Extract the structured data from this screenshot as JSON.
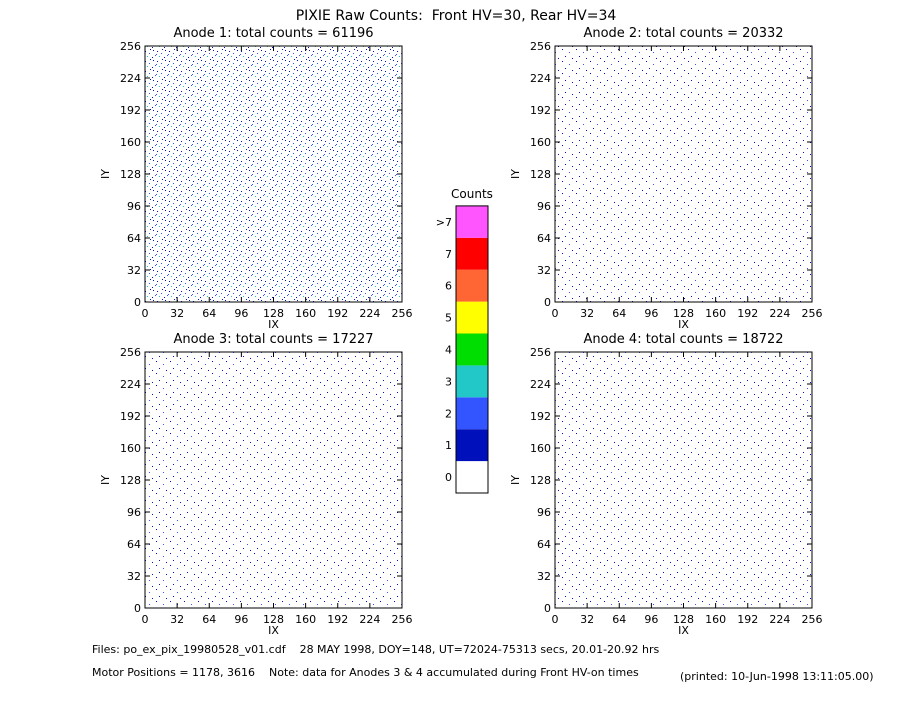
{
  "title": "PIXIE Raw Counts:  Front HV=30, Rear HV=34",
  "chart_data": [
    {
      "type": "heatmap",
      "title": "Anode 1: total counts = 61196",
      "xlabel": "IX",
      "ylabel": "IY",
      "xlim": [
        0,
        256
      ],
      "ylim": [
        0,
        256
      ],
      "xticks": [
        0,
        32,
        64,
        96,
        128,
        160,
        192,
        224,
        256
      ],
      "yticks": [
        0,
        32,
        64,
        96,
        128,
        160,
        192,
        224,
        256
      ]
    },
    {
      "type": "heatmap",
      "title": "Anode 2: total counts = 20332",
      "xlabel": "IX",
      "ylabel": "IY",
      "xlim": [
        0,
        256
      ],
      "ylim": [
        0,
        256
      ],
      "xticks": [
        0,
        32,
        64,
        96,
        128,
        160,
        192,
        224,
        256
      ],
      "yticks": [
        0,
        32,
        64,
        96,
        128,
        160,
        192,
        224,
        256
      ]
    },
    {
      "type": "heatmap",
      "title": "Anode 3: total counts = 17227",
      "xlabel": "IX",
      "ylabel": "IY",
      "xlim": [
        0,
        256
      ],
      "ylim": [
        0,
        256
      ],
      "xticks": [
        0,
        32,
        64,
        96,
        128,
        160,
        192,
        224,
        256
      ],
      "yticks": [
        0,
        32,
        64,
        96,
        128,
        160,
        192,
        224,
        256
      ]
    },
    {
      "type": "heatmap",
      "title": "Anode 4: total counts = 18722",
      "xlabel": "IX",
      "ylabel": "IY",
      "xlim": [
        0,
        256
      ],
      "ylim": [
        0,
        256
      ],
      "xticks": [
        0,
        32,
        64,
        96,
        128,
        160,
        192,
        224,
        256
      ],
      "yticks": [
        0,
        32,
        64,
        96,
        128,
        160,
        192,
        224,
        256
      ]
    }
  ],
  "colorbar": {
    "title": "Counts",
    "labels": [
      "0",
      "1",
      "2",
      "3",
      "4",
      "5",
      "6",
      "7",
      ">7"
    ],
    "colors": [
      "#ffffff",
      "#0011bb",
      "#3355ff",
      "#22c8c8",
      "#00dd00",
      "#ffff00",
      "#ff6633",
      "#ff0000",
      "#ff55ff"
    ]
  },
  "footer": {
    "files": "Files: po_ex_pix_19980528_v01.cdf    28 MAY 1998, DOY=148, UT=72024-75313 secs, 20.01-20.92 hrs",
    "motor": "Motor Positions = 1178, 3616    Note: data for Anodes 3 & 4 accumulated during Front HV-on times",
    "printed": "(printed: 10-Jun-1998 13:11:05.00)"
  }
}
